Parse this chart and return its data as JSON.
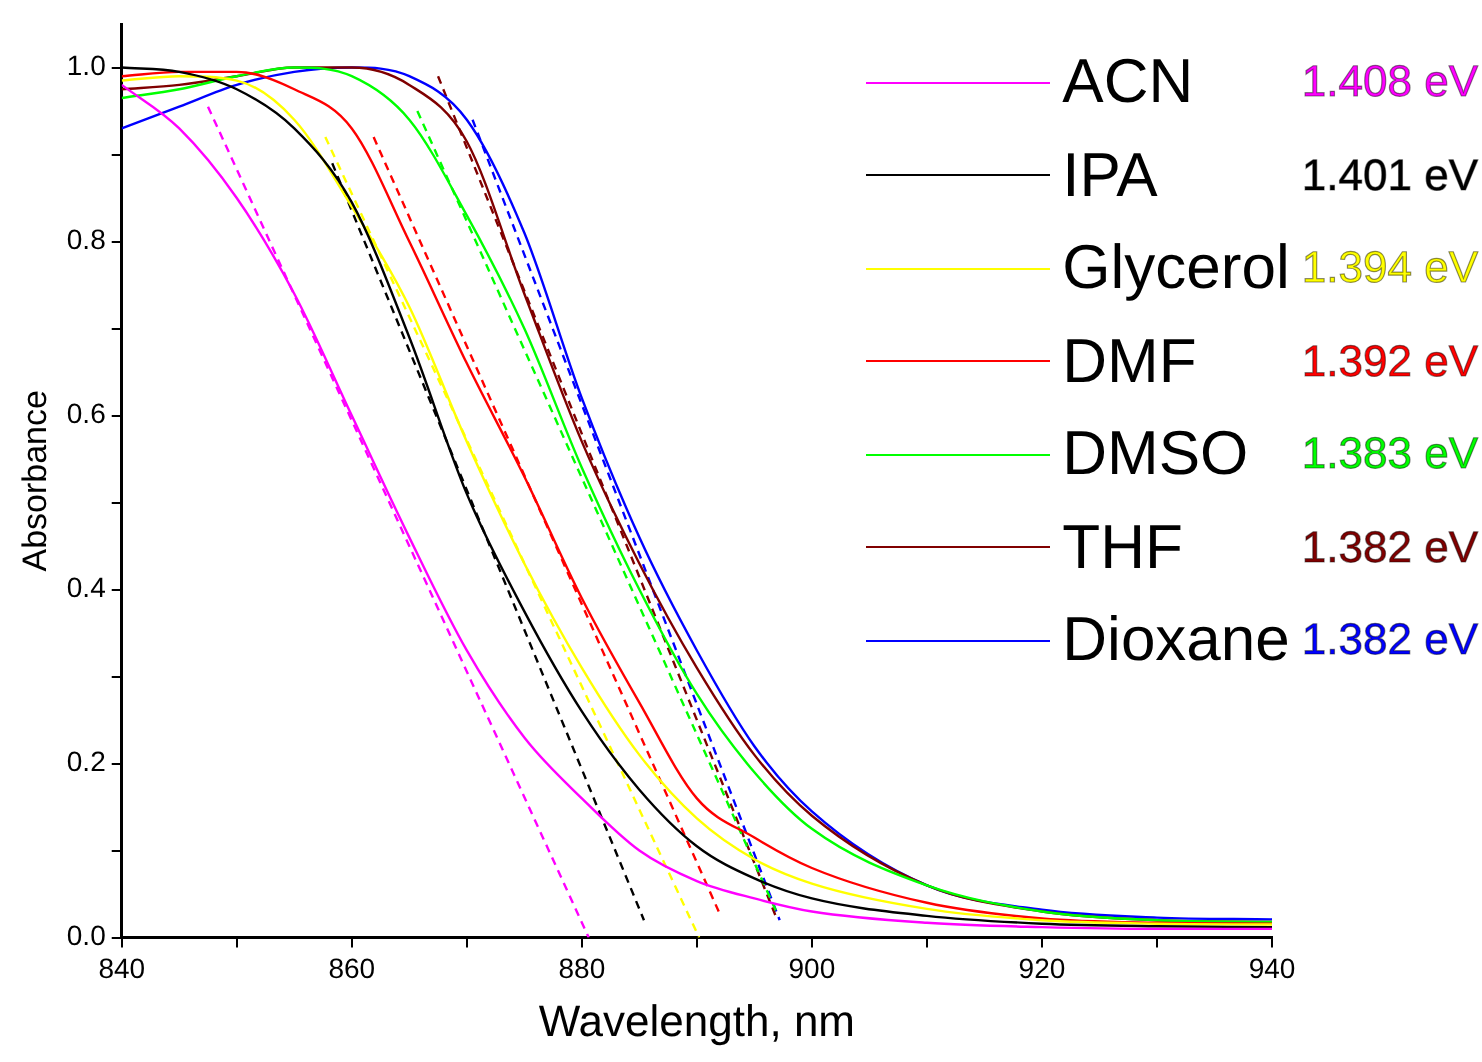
{
  "chart_data": {
    "type": "line",
    "xlabel": "Wavelength, nm",
    "ylabel": "Absorbance",
    "legend": "top right",
    "xlim": [
      840,
      940
    ],
    "xticks": [
      840,
      {
        "value": 850,
        "label": null
      },
      860,
      {
        "value": 870,
        "label": null
      },
      880,
      {
        "value": 890,
        "label": null
      },
      900,
      {
        "value": 910,
        "label": null
      },
      920,
      {
        "value": 930,
        "label": null
      },
      940
    ],
    "ylim": [
      0,
      1.05
    ],
    "yticks": [
      {
        "value": 0,
        "label": "0.0"
      },
      {
        "value": 0.1,
        "label": null
      },
      0.2,
      {
        "value": 0.3,
        "label": null
      },
      0.4,
      {
        "value": 0.5,
        "label": null
      },
      0.6,
      {
        "value": 0.7,
        "label": null
      },
      0.8,
      {
        "value": 0.9,
        "label": null
      },
      {
        "value": 1,
        "label": "1.0"
      }
    ],
    "annotations": [
      "1.408 eV",
      "1.401 eV",
      "1.394 eV",
      "1.392 eV",
      "1.383 eV",
      "1.382 eV",
      "1.382 eV"
    ],
    "x": [
      840,
      845,
      850,
      855,
      860,
      865,
      870,
      875,
      880,
      885,
      890,
      895,
      900,
      910,
      920,
      930,
      940
    ],
    "series": [
      {
        "name": "ACN",
        "color": "#ff00ff",
        "values": [
          0.98,
          0.93,
          0.85,
          0.74,
          0.6,
          0.46,
          0.33,
          0.23,
          0.16,
          0.1,
          0.065,
          0.045,
          0.03,
          0.017,
          0.012,
          0.01,
          0.01
        ]
      },
      {
        "name": "IPA",
        "color": "#000000",
        "values": [
          1.0,
          0.995,
          0.975,
          0.93,
          0.845,
          0.69,
          0.51,
          0.375,
          0.26,
          0.17,
          0.105,
          0.068,
          0.045,
          0.025,
          0.016,
          0.013,
          0.012
        ]
      },
      {
        "name": "Glycerol",
        "color": "#ffff00",
        "values": [
          0.985,
          0.99,
          0.985,
          0.94,
          0.84,
          0.725,
          0.57,
          0.43,
          0.31,
          0.21,
          0.137,
          0.09,
          0.062,
          0.033,
          0.02,
          0.016,
          0.015
        ]
      },
      {
        "name": "DMF",
        "color": "#ff0000",
        "values": [
          0.99,
          0.995,
          0.995,
          0.975,
          0.93,
          0.8,
          0.66,
          0.53,
          0.39,
          0.27,
          0.16,
          0.115,
          0.08,
          0.04,
          0.022,
          0.017,
          0.016
        ]
      },
      {
        "name": "DMSO",
        "color": "#00ff00",
        "values": [
          0.965,
          0.975,
          0.99,
          1.0,
          0.99,
          0.94,
          0.83,
          0.7,
          0.54,
          0.4,
          0.28,
          0.19,
          0.125,
          0.06,
          0.03,
          0.02,
          0.018
        ]
      },
      {
        "name": "THF",
        "color": "#800000",
        "values": [
          0.975,
          0.98,
          0.99,
          1.0,
          1.0,
          0.98,
          0.915,
          0.74,
          0.57,
          0.43,
          0.31,
          0.21,
          0.14,
          0.06,
          0.03,
          0.02,
          0.018
        ]
      },
      {
        "name": "Dioxane",
        "color": "#0000ff",
        "values": [
          0.93,
          0.955,
          0.98,
          0.995,
          1.0,
          0.99,
          0.94,
          0.81,
          0.62,
          0.46,
          0.33,
          0.22,
          0.145,
          0.06,
          0.032,
          0.023,
          0.021
        ]
      },
      {
        "type": "line",
        "line_style": "dashed",
        "color": "#ff00ff",
        "x": [
          847.5,
          880.6
        ],
        "values": [
          0.955,
          0.0
        ]
      },
      {
        "type": "line",
        "line_style": "dashed",
        "color": "#000000",
        "x": [
          858.3,
          885.4
        ],
        "values": [
          0.89,
          0.02
        ]
      },
      {
        "type": "line",
        "line_style": "dashed",
        "color": "#ffff00",
        "x": [
          857.7,
          890.2
        ],
        "values": [
          0.92,
          0.0
        ]
      },
      {
        "type": "line",
        "line_style": "dashed",
        "color": "#ff0000",
        "x": [
          861.9,
          891.9
        ],
        "values": [
          0.92,
          0.03
        ]
      },
      {
        "type": "line",
        "line_style": "dashed",
        "color": "#00ff00",
        "x": [
          865.7,
          896.9
        ],
        "values": [
          0.95,
          0.03
        ]
      },
      {
        "type": "line",
        "line_style": "dashed",
        "color": "#800000",
        "x": [
          867.5,
          897.0
        ],
        "values": [
          0.99,
          0.02
        ]
      },
      {
        "type": "line",
        "line_style": "dashed",
        "color": "#0000ff",
        "x": [
          870.5,
          897.2
        ],
        "values": [
          0.94,
          0.02
        ]
      }
    ]
  }
}
